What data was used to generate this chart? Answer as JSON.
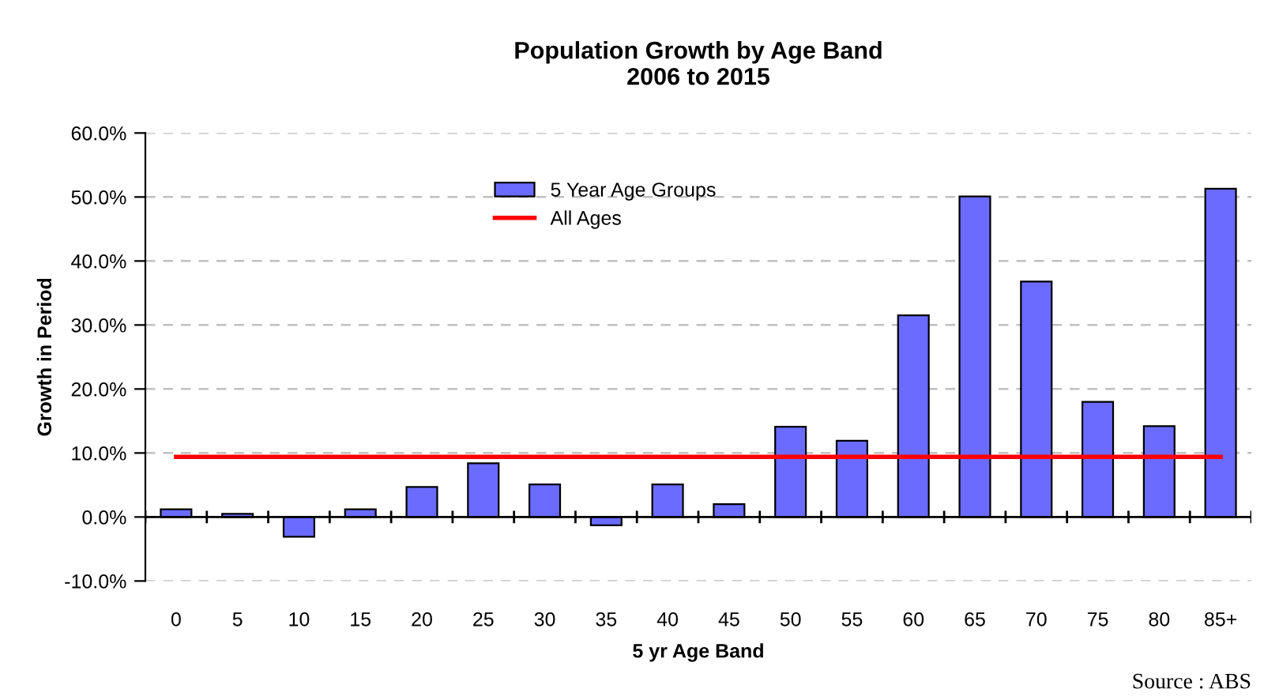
{
  "chart_data": {
    "type": "bar",
    "title": "Population Growth by Age Band\n2006 to 2015",
    "xlabel": "5 yr Age Band",
    "ylabel": "Growth in Period",
    "categories": [
      "0",
      "5",
      "10",
      "15",
      "20",
      "25",
      "30",
      "35",
      "40",
      "45",
      "50",
      "55",
      "60",
      "65",
      "70",
      "75",
      "80",
      "85+"
    ],
    "series": [
      {
        "name": "5 Year Age Groups",
        "color": "#6b6bff",
        "values": [
          1.2,
          0.5,
          -3.1,
          1.2,
          4.7,
          8.4,
          5.1,
          -1.3,
          5.1,
          2.0,
          14.1,
          11.9,
          31.5,
          50.1,
          36.8,
          18.0,
          14.2,
          51.3
        ]
      },
      {
        "name": "All Ages",
        "type": "line",
        "color": "#ff0000",
        "values": [
          9.4,
          9.4,
          9.4,
          9.4,
          9.4,
          9.4,
          9.4,
          9.4,
          9.4,
          9.4,
          9.4,
          9.4,
          9.4,
          9.4,
          9.4,
          9.4,
          9.4,
          9.4
        ]
      }
    ],
    "ylim": [
      -10,
      60
    ],
    "yticks": [
      {
        "value": -10,
        "label": "-10.0%"
      },
      {
        "value": 0,
        "label": "0.0%"
      },
      {
        "value": 10,
        "label": "10.0%"
      },
      {
        "value": 20,
        "label": "20.0%"
      },
      {
        "value": 30,
        "label": "30.0%"
      },
      {
        "value": 40,
        "label": "40.0%"
      },
      {
        "value": 50,
        "label": "50.0%"
      },
      {
        "value": 60,
        "label": "60.0%"
      }
    ],
    "grid": "y",
    "legend": "top",
    "line_style": "solid",
    "marker": "none",
    "annotations": [
      "Source : ABS"
    ]
  }
}
